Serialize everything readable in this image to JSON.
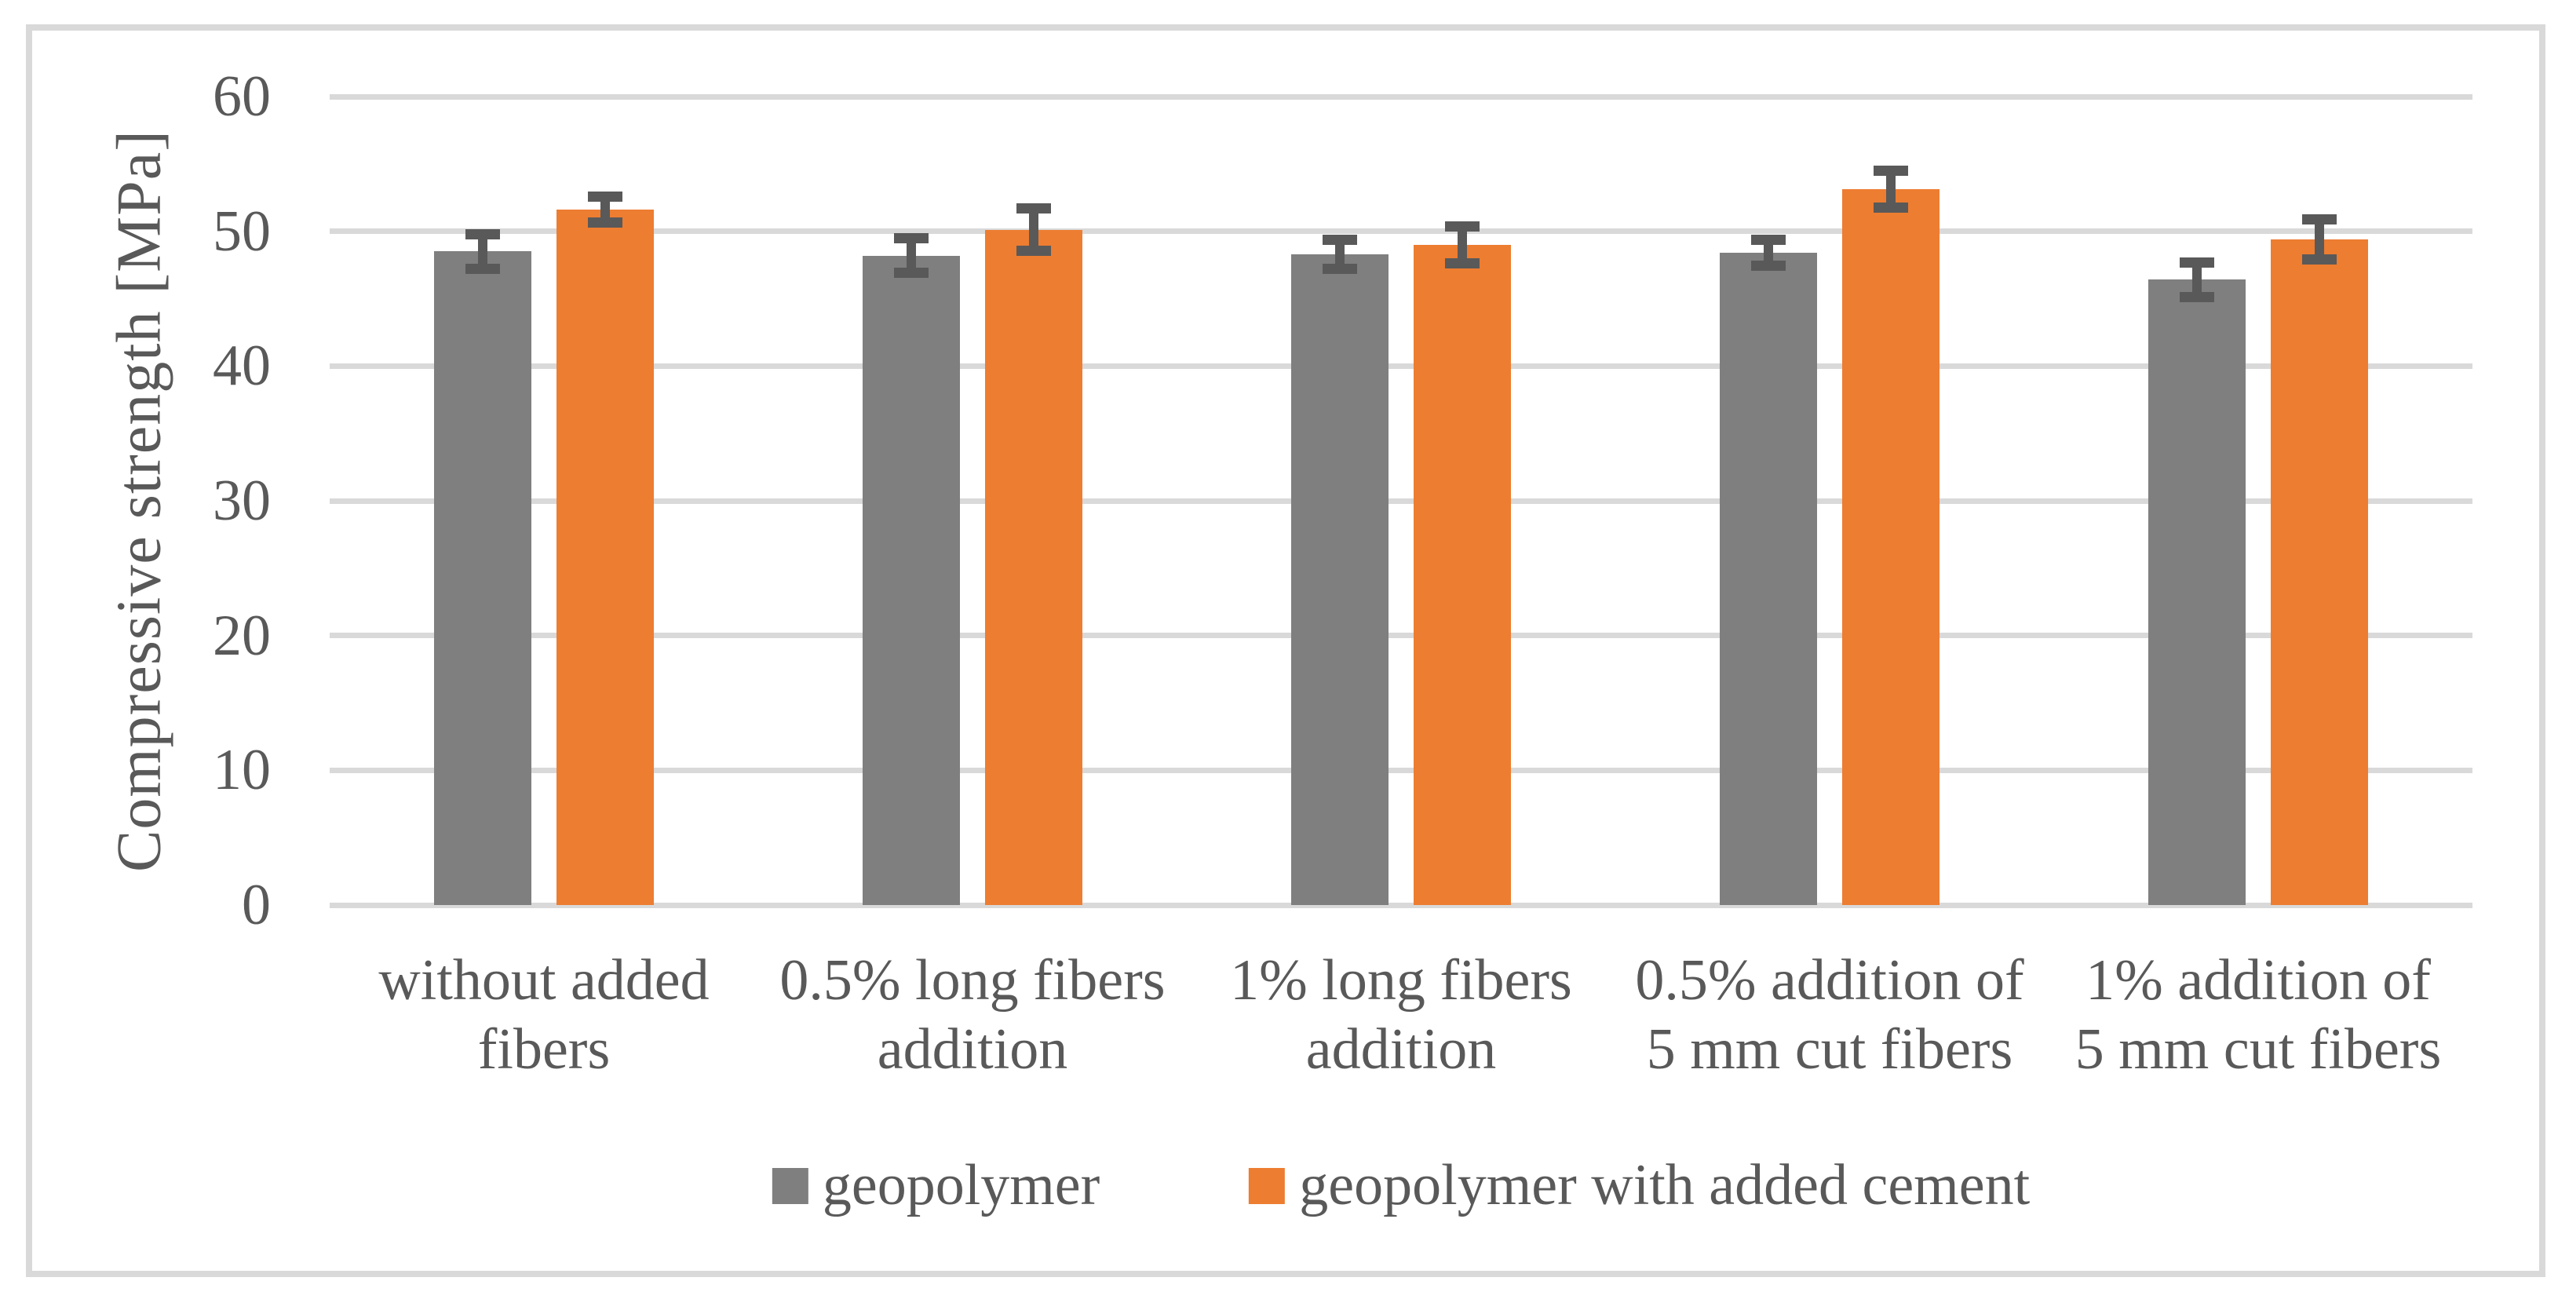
{
  "figure": {
    "background": "#FFFFFF",
    "border_color": "#D9D9D9"
  },
  "chart_data": {
    "type": "bar",
    "title": "",
    "ylabel": "Compressive strength [MPa]",
    "xlabel": "",
    "ylim": [
      0,
      60
    ],
    "yticks": [
      0,
      10,
      20,
      30,
      40,
      50,
      60
    ],
    "grid": "horizontal",
    "gridline_color": "#D9D9D9",
    "text_color": "#595959",
    "error_bar_color": "#595959",
    "legend_position": "bottom",
    "categories": [
      "without added fibers",
      "0.5% long fibers addition",
      "1% long fibers addition",
      "0.5% addition of 5 mm cut fibers",
      "1% addition of 5 mm cut fibers"
    ],
    "categories_display": [
      [
        "without added",
        "fibers"
      ],
      [
        "0.5% long fibers",
        "addition"
      ],
      [
        "1% long fibers",
        "addition"
      ],
      [
        "0.5% addition of",
        "5 mm cut fibers"
      ],
      [
        "1% addition of",
        "5 mm cut fibers"
      ]
    ],
    "series": [
      {
        "name": "geopolymer",
        "color": "#7F7F7F",
        "values": [
          48.5,
          48.2,
          48.3,
          48.4,
          46.4
        ],
        "errors": [
          1.3,
          1.3,
          1.1,
          1.0,
          1.3
        ]
      },
      {
        "name": "geopolymer with added cement",
        "color": "#ED7D31",
        "values": [
          51.6,
          50.1,
          49.0,
          53.1,
          49.4
        ],
        "errors": [
          1.0,
          1.6,
          1.4,
          1.4,
          1.5
        ]
      }
    ]
  }
}
